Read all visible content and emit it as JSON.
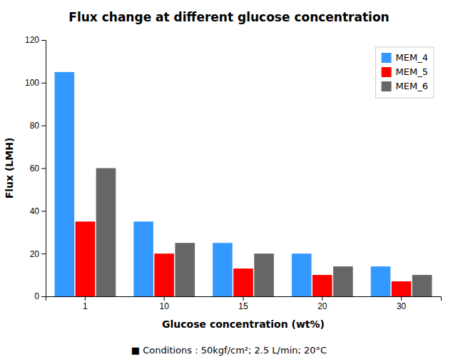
{
  "chart_data": {
    "type": "bar",
    "title": "Flux change at different glucose concentration",
    "xlabel": "Glucose concentration (wt%)",
    "ylabel": "Flux (LMH)",
    "footer": "■ Conditions : 50kgf/cm²; 2.5 L/min; 20°C",
    "categories": [
      "1",
      "10",
      "15",
      "20",
      "30"
    ],
    "series": [
      {
        "name": "MEM_4",
        "color": "#3399FF",
        "values": [
          105,
          35,
          25,
          20,
          14
        ]
      },
      {
        "name": "MEM_5",
        "color": "#FF0000",
        "values": [
          35,
          20,
          13,
          10,
          7
        ]
      },
      {
        "name": "MEM_6",
        "color": "#666666",
        "values": [
          60,
          25,
          20,
          14,
          10
        ]
      }
    ],
    "ylim": [
      0,
      120
    ],
    "yticks": [
      0,
      20,
      40,
      60,
      80,
      100,
      120
    ],
    "grid": false,
    "legend": "upper right"
  }
}
